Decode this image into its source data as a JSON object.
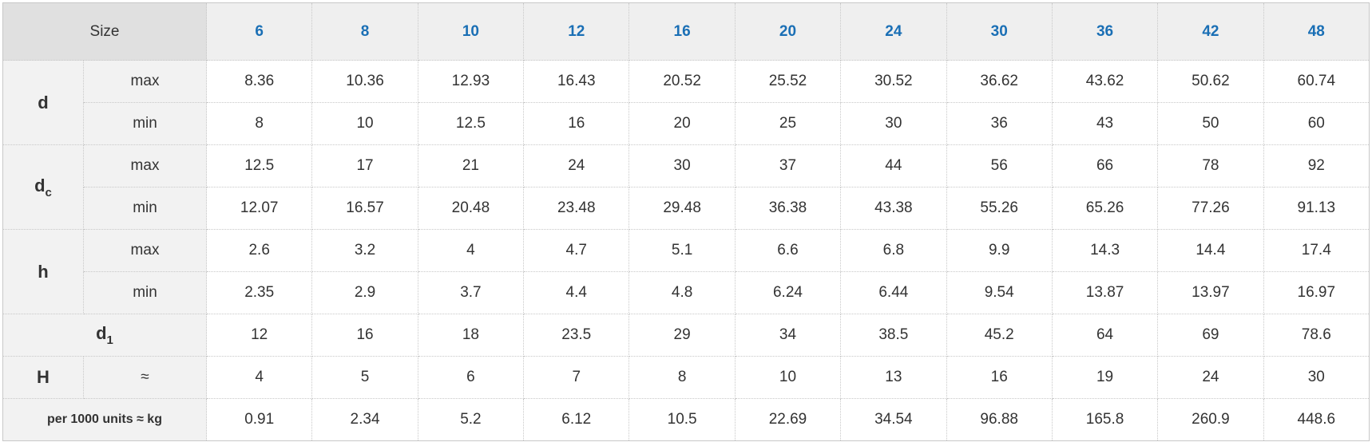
{
  "table": {
    "header": {
      "label": "Size",
      "sizes": [
        6,
        8,
        10,
        12,
        16,
        20,
        24,
        30,
        36,
        42,
        48
      ]
    },
    "groups": [
      {
        "symbol": {
          "base": "d"
        },
        "rows": [
          {
            "label": "max",
            "values": [
              8.36,
              10.36,
              12.93,
              16.43,
              20.52,
              25.52,
              30.52,
              36.62,
              43.62,
              50.62,
              60.74
            ]
          },
          {
            "label": "min",
            "values": [
              8,
              10,
              12.5,
              16,
              20,
              25,
              30,
              36,
              43,
              50,
              60
            ]
          }
        ]
      },
      {
        "symbol": {
          "base": "d",
          "sub": "c"
        },
        "rows": [
          {
            "label": "max",
            "values": [
              12.5,
              17,
              21,
              24,
              30,
              37,
              44,
              56,
              66,
              78,
              92
            ]
          },
          {
            "label": "min",
            "values": [
              12.07,
              16.57,
              20.48,
              23.48,
              29.48,
              36.38,
              43.38,
              55.26,
              65.26,
              77.26,
              91.13
            ]
          }
        ]
      },
      {
        "symbol": {
          "base": "h"
        },
        "rows": [
          {
            "label": "max",
            "values": [
              2.6,
              3.2,
              4,
              4.7,
              5.1,
              6.6,
              6.8,
              9.9,
              14.3,
              14.4,
              17.4
            ]
          },
          {
            "label": "min",
            "values": [
              2.35,
              2.9,
              3.7,
              4.4,
              4.8,
              6.24,
              6.44,
              9.54,
              13.87,
              13.97,
              16.97
            ]
          }
        ]
      },
      {
        "symbol": {
          "base": "d",
          "sub": "1"
        },
        "rows": [
          {
            "values": [
              12,
              16,
              18,
              23.5,
              29,
              34,
              38.5,
              45.2,
              64,
              69,
              78.6
            ]
          }
        ]
      },
      {
        "symbol": {
          "base": "H"
        },
        "rows": [
          {
            "label": "≈",
            "values": [
              4,
              5,
              6,
              7,
              8,
              10,
              13,
              16,
              19,
              24,
              30
            ]
          }
        ]
      },
      {
        "symbol": {
          "base": "per 1000 units ≈ kg"
        },
        "rows": [
          {
            "values": [
              0.91,
              2.34,
              5.2,
              6.12,
              10.5,
              22.69,
              34.54,
              96.88,
              165.8,
              260.9,
              448.6
            ]
          }
        ]
      }
    ]
  }
}
